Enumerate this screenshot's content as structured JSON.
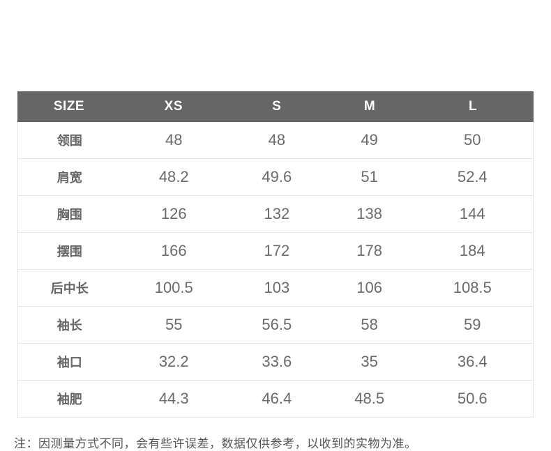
{
  "table": {
    "header": [
      "SIZE",
      "XS",
      "S",
      "M",
      "L"
    ],
    "rows": [
      {
        "label": "领围",
        "values": [
          "48",
          "48",
          "49",
          "50"
        ]
      },
      {
        "label": "肩宽",
        "values": [
          "48.2",
          "49.6",
          "51",
          "52.4"
        ]
      },
      {
        "label": "胸围",
        "values": [
          "126",
          "132",
          "138",
          "144"
        ]
      },
      {
        "label": "摆围",
        "values": [
          "166",
          "172",
          "178",
          "184"
        ]
      },
      {
        "label": "后中长",
        "values": [
          "100.5",
          "103",
          "106",
          "108.5"
        ]
      },
      {
        "label": "袖长",
        "values": [
          "55",
          "56.5",
          "58",
          "59"
        ]
      },
      {
        "label": "袖口",
        "values": [
          "32.2",
          "33.6",
          "35",
          "36.4"
        ]
      },
      {
        "label": "袖肥",
        "values": [
          "44.3",
          "46.4",
          "48.5",
          "50.6"
        ]
      }
    ]
  },
  "note": "注：因测量方式不同，会有些许误差，数据仅供参考，以收到的实物为准。",
  "colors": {
    "header_bg": "#666666",
    "header_text": "#ffffff",
    "label_text": "#666666",
    "value_text": "#6b6b6b",
    "border": "#e7e7e7",
    "note_text": "#555555",
    "page_bg": "#ffffff"
  },
  "chart_data": {
    "type": "table",
    "columns": [
      "SIZE",
      "XS",
      "S",
      "M",
      "L"
    ],
    "rows": [
      [
        "领围",
        "48",
        "48",
        "49",
        "50"
      ],
      [
        "肩宽",
        "48.2",
        "49.6",
        "51",
        "52.4"
      ],
      [
        "胸围",
        "126",
        "132",
        "138",
        "144"
      ],
      [
        "摆围",
        "166",
        "172",
        "178",
        "184"
      ],
      [
        "后中长",
        "100.5",
        "103",
        "106",
        "108.5"
      ],
      [
        "袖长",
        "55",
        "56.5",
        "58",
        "59"
      ],
      [
        "袖口",
        "32.2",
        "33.6",
        "35",
        "36.4"
      ],
      [
        "袖肥",
        "44.3",
        "46.4",
        "48.5",
        "50.6"
      ]
    ],
    "title": "",
    "footnote": "注：因测量方式不同，会有些许误差，数据仅供参考，以收到的实物为准。",
    "layout_hints": {
      "header_style": "dark-gray-bar",
      "grid": "horizontal-rules-only"
    }
  }
}
